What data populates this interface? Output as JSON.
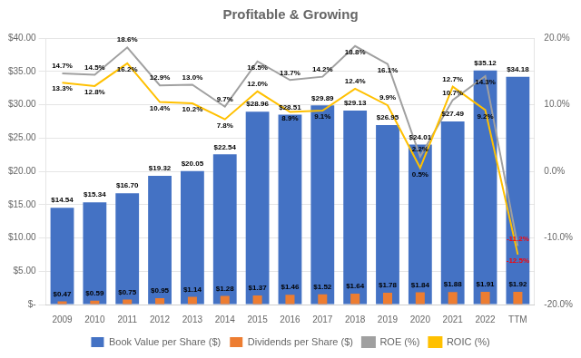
{
  "chart_data": {
    "type": "bar",
    "title": "Profitable & Growing",
    "categories": [
      "2009",
      "2010",
      "2011",
      "2012",
      "2013",
      "2014",
      "2015",
      "2016",
      "2017",
      "2018",
      "2019",
      "2020",
      "2021",
      "2022",
      "TTM"
    ],
    "series": [
      {
        "name": "Book Value per Share ($)",
        "type": "bar",
        "color": "#4472C4",
        "values": [
          14.54,
          15.34,
          16.7,
          19.32,
          20.05,
          22.54,
          28.96,
          28.51,
          29.89,
          29.13,
          26.95,
          24.01,
          27.49,
          35.12,
          34.18
        ],
        "value_labels": [
          "$14.54",
          "$15.34",
          "$16.70",
          "$19.32",
          "$20.05",
          "$22.54",
          "$28.96",
          "$28.51",
          "$29.89",
          "$29.13",
          "$26.95",
          "$24.01",
          "$27.49",
          "$35.12",
          "$34.18"
        ]
      },
      {
        "name": "Dividends per Share ($)",
        "type": "bar",
        "color": "#ED7D31",
        "values": [
          0.47,
          0.59,
          0.75,
          0.95,
          1.14,
          1.28,
          1.37,
          1.46,
          1.52,
          1.64,
          1.78,
          1.84,
          1.88,
          1.91,
          1.92
        ],
        "value_labels": [
          "$0.47",
          "$0.59",
          "$0.75",
          "$0.95",
          "$1.14",
          "$1.28",
          "$1.37",
          "$1.46",
          "$1.52",
          "$1.64",
          "$1.78",
          "$1.84",
          "$1.88",
          "$1.91",
          "$1.92"
        ]
      },
      {
        "name": "ROE (%)",
        "type": "line",
        "color": "#A0A0A0",
        "axis": "y2",
        "marker": "none",
        "values": [
          14.7,
          14.5,
          18.6,
          12.9,
          13.0,
          9.7,
          16.5,
          13.7,
          14.2,
          18.8,
          16.1,
          2.2,
          10.7,
          14.3,
          -11.2
        ],
        "value_labels": [
          "14.7%",
          "14.5%",
          "18.6%",
          "12.9%",
          "13.0%",
          "9.7%",
          "16.5%",
          "13.7%",
          "14.2%",
          "18.8%",
          "16.1%",
          "2.2%",
          "10.7%",
          "14.3%",
          "-11.2%"
        ]
      },
      {
        "name": "ROIC (%)",
        "type": "line",
        "color": "#FFC000",
        "axis": "y2",
        "marker": "none",
        "values": [
          13.3,
          12.8,
          16.2,
          10.4,
          10.2,
          7.8,
          12.0,
          8.9,
          9.1,
          12.4,
          9.9,
          0.5,
          12.7,
          9.2,
          -12.5
        ],
        "value_labels": [
          "13.3%",
          "12.8%",
          "16.2%",
          "10.4%",
          "10.2%",
          "7.8%",
          "12.0%",
          "8.9%",
          "9.1%",
          "12.4%",
          "9.9%",
          "0.5%",
          "12.7%",
          "9.2%",
          "-12.5%"
        ]
      }
    ],
    "ylim": [
      0,
      40
    ],
    "yticks": [
      {
        "value": 0,
        "label": "$-"
      },
      {
        "value": 5,
        "label": "$5.00"
      },
      {
        "value": 10,
        "label": "$10.00"
      },
      {
        "value": 15,
        "label": "$15.00"
      },
      {
        "value": 20,
        "label": "$20.00"
      },
      {
        "value": 25,
        "label": "$25.00"
      },
      {
        "value": 30,
        "label": "$30.00"
      },
      {
        "value": 35,
        "label": "$35.00"
      },
      {
        "value": 40,
        "label": "$40.00"
      }
    ],
    "y2lim": [
      -20,
      20
    ],
    "y2ticks": [
      {
        "value": -20,
        "label": "-20.0%"
      },
      {
        "value": -10,
        "label": "-10.0%"
      },
      {
        "value": 0,
        "label": "0.0%"
      },
      {
        "value": 10,
        "label": "10.0%"
      },
      {
        "value": 20,
        "label": "20.0%"
      }
    ],
    "grid": true,
    "legend": "bottom",
    "data_labels": true
  }
}
